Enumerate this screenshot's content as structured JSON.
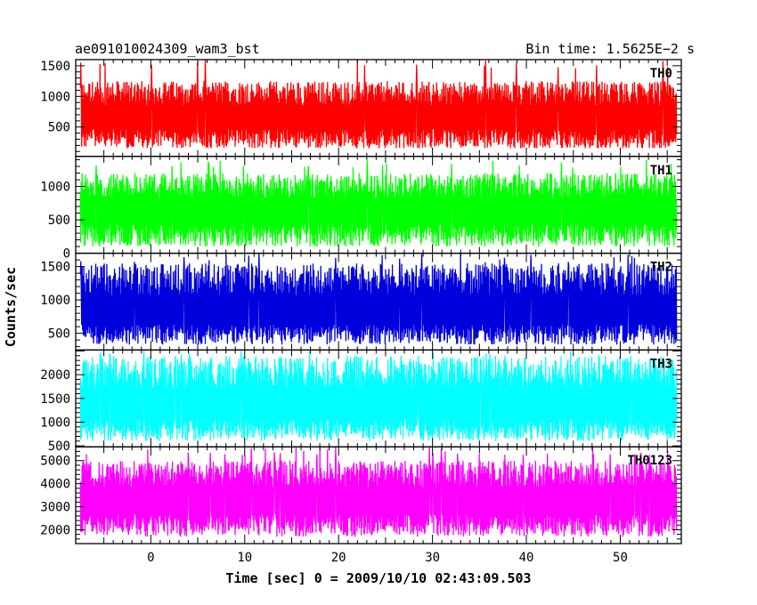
{
  "header": {
    "title": "ae091010024309_wam3_bst",
    "bin_time": "Bin time: 1.5625E−2 s"
  },
  "chart_data": {
    "type": "line",
    "xlabel": "Time [sec] 0 = 2009/10/10 02:43:09.503",
    "ylabel": "Counts/sec",
    "xlim": [
      -8,
      56.5
    ],
    "xticks": [
      0,
      10,
      20,
      30,
      40,
      50
    ],
    "data_x_range": [
      -7.5,
      56
    ],
    "bin_time_s": 0.015625,
    "grid": false,
    "panels": [
      {
        "name": "TH0",
        "color": "#ff0000",
        "ylim": [
          20,
          1600
        ],
        "yticks": [
          500,
          1000,
          1500
        ],
        "mean": 640,
        "typical_low": 150,
        "typical_high": 1250,
        "peak": 1600
      },
      {
        "name": "TH1",
        "color": "#00ff00",
        "ylim": [
          0,
          1450
        ],
        "yticks": [
          0,
          500,
          1000
        ],
        "mean": 620,
        "typical_low": 100,
        "typical_high": 1200,
        "peak": 1400
      },
      {
        "name": "TH2",
        "color": "#0000dd",
        "ylim": [
          250,
          1700
        ],
        "yticks": [
          500,
          1000,
          1500
        ],
        "mean": 800,
        "typical_low": 330,
        "typical_high": 1550,
        "peak": 1700
      },
      {
        "name": "TH3",
        "color": "#00ffff",
        "ylim": [
          480,
          2520
        ],
        "yticks": [
          500,
          1000,
          1500,
          2000
        ],
        "mean": 1300,
        "typical_low": 600,
        "typical_high": 2400,
        "peak": 2520
      },
      {
        "name": "TH0123",
        "color": "#ff00ff",
        "ylim": [
          1400,
          5600
        ],
        "yticks": [
          2000,
          3000,
          4000,
          5000
        ],
        "mean": 3200,
        "typical_low": 1700,
        "typical_high": 5000,
        "peak": 5600
      }
    ]
  }
}
